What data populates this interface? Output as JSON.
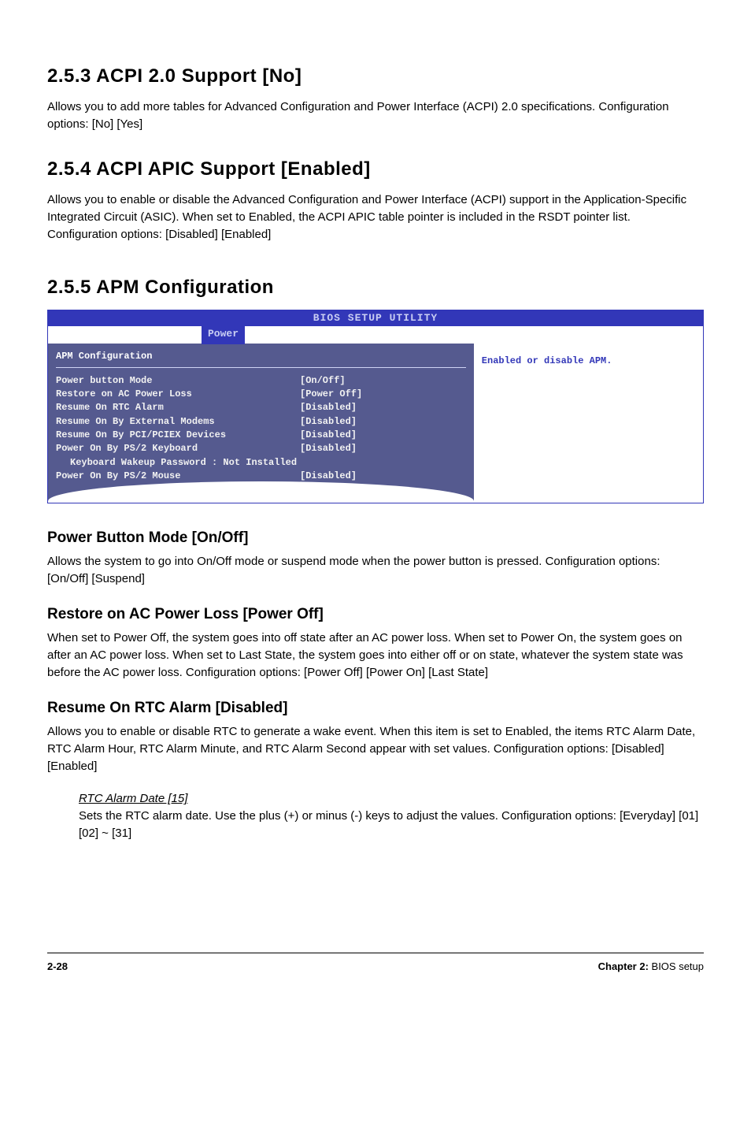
{
  "s253": {
    "heading": "2.5.3   ACPI 2.0 Support [No]",
    "body": "Allows you to add more tables for Advanced Configuration and Power Interface (ACPI) 2.0 specifications. Configuration options: [No] [Yes]"
  },
  "s254": {
    "heading": "2.5.4   ACPI APIC Support [Enabled]",
    "body": "Allows you to enable or disable the Advanced Configuration and Power Interface (ACPI) support in the Application-Specific Integrated Circuit (ASIC). When set to Enabled, the ACPI APIC table pointer is included in the RSDT pointer list. Configuration options: [Disabled] [Enabled]"
  },
  "s255": {
    "heading": "2.5.5   APM Configuration"
  },
  "bios": {
    "title_util": "BIOS SETUP UTILITY",
    "tab": "Power",
    "left_title": "APM Configuration",
    "rows": [
      {
        "k": "Power button Mode",
        "v": "[On/Off]",
        "indent": false
      },
      {
        "k": "Restore on AC Power Loss",
        "v": "[Power Off]",
        "indent": false
      },
      {
        "k": "Resume On RTC Alarm",
        "v": "[Disabled]",
        "indent": false
      },
      {
        "k": "Resume On By External Modems",
        "v": "[Disabled]",
        "indent": false
      },
      {
        "k": "Resume On By PCI/PCIEX Devices",
        "v": "[Disabled]",
        "indent": false
      },
      {
        "k": "Power On By PS/2 Keyboard",
        "v": "[Disabled]",
        "indent": false
      },
      {
        "k": "Keyboard Wakeup Password : Not Installed",
        "v": "",
        "indent": true
      },
      {
        "k": "Power On By PS/2 Mouse",
        "v": "[Disabled]",
        "indent": false
      }
    ],
    "right_text": "Enabled or disable APM."
  },
  "pbm": {
    "heading": "Power Button Mode [On/Off]",
    "body": "Allows the system to go into On/Off mode or suspend mode when the power button is pressed. Configuration options: [On/Off] [Suspend]"
  },
  "rac": {
    "heading": "Restore on AC Power Loss [Power Off]",
    "body": "When set to Power Off, the system goes into off state after an AC power loss. When set to Power On, the system goes on after an AC power loss. When set to Last State, the system goes into either off or on state, whatever the system state was before the AC power loss. Configuration options: [Power Off] [Power On] [Last State]"
  },
  "rtc": {
    "heading": "Resume On RTC Alarm [Disabled]",
    "body": "Allows you to enable or disable RTC to generate a wake event. When this item is set to Enabled, the items RTC Alarm Date, RTC Alarm Hour, RTC Alarm Minute, and RTC Alarm Second appear with set values. Configuration options: [Disabled] [Enabled]",
    "sub_heading": "RTC Alarm Date [15]",
    "sub_body": "Sets the RTC alarm date. Use the plus (+) or minus (-) keys to adjust the values. Configuration options: [Everyday] [01] [02] ~ [31]"
  },
  "footer": {
    "page": "2-28",
    "chapter_bold": "Chapter 2:",
    "chapter_rest": " BIOS setup"
  }
}
